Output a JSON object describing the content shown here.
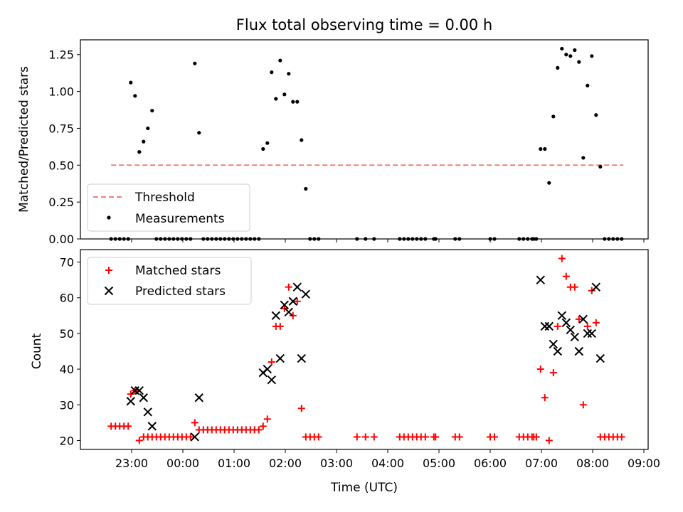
{
  "chart_data": [
    {
      "type": "scatter",
      "title": "Flux total observing time = 0.00 h",
      "ylabel": "Matched/Predicted stars",
      "xlabel": "",
      "ylim": [
        0,
        1.35
      ],
      "yticks": [
        "0.00",
        "0.25",
        "0.50",
        "0.75",
        "1.00",
        "1.25"
      ],
      "ytick_values": [
        0,
        0.25,
        0.5,
        0.75,
        1.0,
        1.25
      ],
      "threshold": {
        "name": "Threshold",
        "y": 0.5,
        "x_start": "22:36",
        "x_end": "08:36",
        "color": "#f08080"
      },
      "legend_position": "lower-left",
      "series": [
        {
          "name": "Measurements",
          "color": "#000000",
          "marker": "dot",
          "points": [
            [
              "22:36",
              0
            ],
            [
              "22:41",
              0
            ],
            [
              "22:46",
              0
            ],
            [
              "22:51",
              0
            ],
            [
              "22:56",
              0
            ],
            [
              "22:59",
              1.06
            ],
            [
              "23:04",
              0.97
            ],
            [
              "23:09",
              0.59
            ],
            [
              "23:14",
              0.66
            ],
            [
              "23:19",
              0.75
            ],
            [
              "23:24",
              0.87
            ],
            [
              "23:29",
              0
            ],
            [
              "23:34",
              0
            ],
            [
              "23:39",
              0
            ],
            [
              "23:44",
              0
            ],
            [
              "23:49",
              0
            ],
            [
              "23:54",
              0
            ],
            [
              "23:59",
              0
            ],
            [
              "00:04",
              0
            ],
            [
              "00:09",
              0
            ],
            [
              "00:14",
              1.19
            ],
            [
              "00:19",
              0.72
            ],
            [
              "00:24",
              0
            ],
            [
              "00:29",
              0
            ],
            [
              "00:34",
              0
            ],
            [
              "00:39",
              0
            ],
            [
              "00:44",
              0
            ],
            [
              "00:49",
              0
            ],
            [
              "00:54",
              0
            ],
            [
              "00:59",
              0
            ],
            [
              "01:04",
              0
            ],
            [
              "01:09",
              0
            ],
            [
              "01:14",
              0
            ],
            [
              "01:19",
              0
            ],
            [
              "01:24",
              0
            ],
            [
              "01:29",
              0
            ],
            [
              "01:34",
              0.61
            ],
            [
              "01:39",
              0.65
            ],
            [
              "01:44",
              1.13
            ],
            [
              "01:49",
              0.95
            ],
            [
              "01:54",
              1.21
            ],
            [
              "01:59",
              0.98
            ],
            [
              "02:04",
              1.12
            ],
            [
              "02:09",
              0.93
            ],
            [
              "02:14",
              0.93
            ],
            [
              "02:19",
              0.67
            ],
            [
              "02:24",
              0.34
            ],
            [
              "02:29",
              0
            ],
            [
              "02:34",
              0
            ],
            [
              "02:39",
              0
            ],
            [
              "03:24",
              0
            ],
            [
              "03:34",
              0
            ],
            [
              "03:44",
              0
            ],
            [
              "04:14",
              0
            ],
            [
              "04:19",
              0
            ],
            [
              "04:24",
              0
            ],
            [
              "04:29",
              0
            ],
            [
              "04:34",
              0
            ],
            [
              "04:39",
              0
            ],
            [
              "04:44",
              0
            ],
            [
              "04:54",
              0
            ],
            [
              "04:56",
              0
            ],
            [
              "05:19",
              0
            ],
            [
              "05:24",
              0
            ],
            [
              "06:00",
              0
            ],
            [
              "06:05",
              0
            ],
            [
              "06:34",
              0
            ],
            [
              "06:39",
              0
            ],
            [
              "06:44",
              0
            ],
            [
              "06:49",
              0
            ],
            [
              "06:51",
              0
            ],
            [
              "06:54",
              0
            ],
            [
              "06:59",
              0.61
            ],
            [
              "07:04",
              0.61
            ],
            [
              "07:09",
              0.38
            ],
            [
              "07:14",
              0.83
            ],
            [
              "07:19",
              1.16
            ],
            [
              "07:24",
              1.29
            ],
            [
              "07:29",
              1.25
            ],
            [
              "07:34",
              1.24
            ],
            [
              "07:39",
              1.28
            ],
            [
              "07:44",
              1.2
            ],
            [
              "07:49",
              0.55
            ],
            [
              "07:54",
              1.04
            ],
            [
              "07:59",
              1.24
            ],
            [
              "08:04",
              0.84
            ],
            [
              "08:09",
              0.49
            ],
            [
              "08:14",
              0
            ],
            [
              "08:19",
              0
            ],
            [
              "08:24",
              0
            ],
            [
              "08:29",
              0
            ],
            [
              "08:34",
              0
            ]
          ]
        }
      ]
    },
    {
      "type": "scatter",
      "title": "",
      "xlabel": "Time (UTC)",
      "ylabel": "Count",
      "ylim": [
        17.5,
        73.5
      ],
      "yticks": [
        "20",
        "30",
        "40",
        "50",
        "60",
        "70"
      ],
      "ytick_values": [
        20,
        30,
        40,
        50,
        60,
        70
      ],
      "xlim": [
        "22:00",
        "09:05"
      ],
      "xticks": [
        "23:00",
        "00:00",
        "01:00",
        "02:00",
        "03:00",
        "04:00",
        "05:00",
        "06:00",
        "07:00",
        "08:00",
        "09:00"
      ],
      "legend_position": "top-left",
      "series": [
        {
          "name": "Matched stars",
          "color": "#ff0000",
          "marker": "plus",
          "points": [
            [
              "22:36",
              24
            ],
            [
              "22:41",
              24
            ],
            [
              "22:46",
              24
            ],
            [
              "22:51",
              24
            ],
            [
              "22:56",
              24
            ],
            [
              "22:59",
              33
            ],
            [
              "23:04",
              34
            ],
            [
              "23:09",
              20
            ],
            [
              "23:14",
              21
            ],
            [
              "23:19",
              21
            ],
            [
              "23:24",
              21
            ],
            [
              "23:29",
              21
            ],
            [
              "23:34",
              21
            ],
            [
              "23:39",
              21
            ],
            [
              "23:44",
              21
            ],
            [
              "23:49",
              21
            ],
            [
              "23:54",
              21
            ],
            [
              "23:59",
              21
            ],
            [
              "00:04",
              21
            ],
            [
              "00:09",
              21
            ],
            [
              "00:14",
              25
            ],
            [
              "00:19",
              23
            ],
            [
              "00:24",
              23
            ],
            [
              "00:29",
              23
            ],
            [
              "00:34",
              23
            ],
            [
              "00:39",
              23
            ],
            [
              "00:44",
              23
            ],
            [
              "00:49",
              23
            ],
            [
              "00:54",
              23
            ],
            [
              "00:59",
              23
            ],
            [
              "01:04",
              23
            ],
            [
              "01:09",
              23
            ],
            [
              "01:14",
              23
            ],
            [
              "01:19",
              23
            ],
            [
              "01:24",
              23
            ],
            [
              "01:29",
              23
            ],
            [
              "01:34",
              24
            ],
            [
              "01:39",
              26
            ],
            [
              "01:44",
              42
            ],
            [
              "01:49",
              52
            ],
            [
              "01:54",
              52
            ],
            [
              "01:59",
              57
            ],
            [
              "02:04",
              63
            ],
            [
              "02:09",
              55
            ],
            [
              "02:14",
              59
            ],
            [
              "02:19",
              29
            ],
            [
              "02:24",
              21
            ],
            [
              "02:29",
              21
            ],
            [
              "02:34",
              21
            ],
            [
              "02:39",
              21
            ],
            [
              "03:24",
              21
            ],
            [
              "03:34",
              21
            ],
            [
              "03:44",
              21
            ],
            [
              "04:14",
              21
            ],
            [
              "04:19",
              21
            ],
            [
              "04:24",
              21
            ],
            [
              "04:29",
              21
            ],
            [
              "04:34",
              21
            ],
            [
              "04:39",
              21
            ],
            [
              "04:44",
              21
            ],
            [
              "04:54",
              21
            ],
            [
              "04:56",
              21
            ],
            [
              "05:19",
              21
            ],
            [
              "05:24",
              21
            ],
            [
              "06:00",
              21
            ],
            [
              "06:05",
              21
            ],
            [
              "06:34",
              21
            ],
            [
              "06:39",
              21
            ],
            [
              "06:44",
              21
            ],
            [
              "06:49",
              21
            ],
            [
              "06:51",
              21
            ],
            [
              "06:54",
              21
            ],
            [
              "06:59",
              40
            ],
            [
              "07:04",
              32
            ],
            [
              "07:09",
              20
            ],
            [
              "07:14",
              39
            ],
            [
              "07:19",
              52
            ],
            [
              "07:24",
              71
            ],
            [
              "07:29",
              66
            ],
            [
              "07:34",
              63
            ],
            [
              "07:39",
              63
            ],
            [
              "07:44",
              54
            ],
            [
              "07:49",
              30
            ],
            [
              "07:54",
              52
            ],
            [
              "07:59",
              62
            ],
            [
              "08:04",
              53
            ],
            [
              "08:09",
              21
            ],
            [
              "08:14",
              21
            ],
            [
              "08:19",
              21
            ],
            [
              "08:24",
              21
            ],
            [
              "08:29",
              21
            ],
            [
              "08:34",
              21
            ]
          ]
        },
        {
          "name": "Predicted stars",
          "color": "#000000",
          "marker": "x",
          "points": [
            [
              "22:59",
              31
            ],
            [
              "23:04",
              34
            ],
            [
              "23:09",
              34
            ],
            [
              "23:14",
              32
            ],
            [
              "23:19",
              28
            ],
            [
              "23:24",
              24
            ],
            [
              "00:14",
              21
            ],
            [
              "00:19",
              32
            ],
            [
              "01:34",
              39
            ],
            [
              "01:39",
              40
            ],
            [
              "01:44",
              37
            ],
            [
              "01:49",
              55
            ],
            [
              "01:54",
              43
            ],
            [
              "01:59",
              58
            ],
            [
              "02:04",
              56
            ],
            [
              "02:09",
              59
            ],
            [
              "02:14",
              63
            ],
            [
              "02:19",
              43
            ],
            [
              "02:24",
              61
            ],
            [
              "06:59",
              65
            ],
            [
              "07:04",
              52
            ],
            [
              "07:09",
              52
            ],
            [
              "07:14",
              47
            ],
            [
              "07:19",
              45
            ],
            [
              "07:24",
              55
            ],
            [
              "07:29",
              53
            ],
            [
              "07:34",
              51
            ],
            [
              "07:39",
              49
            ],
            [
              "07:44",
              45
            ],
            [
              "07:49",
              54
            ],
            [
              "07:54",
              50
            ],
            [
              "07:59",
              50
            ],
            [
              "08:04",
              63
            ],
            [
              "08:09",
              43
            ]
          ]
        }
      ]
    }
  ]
}
